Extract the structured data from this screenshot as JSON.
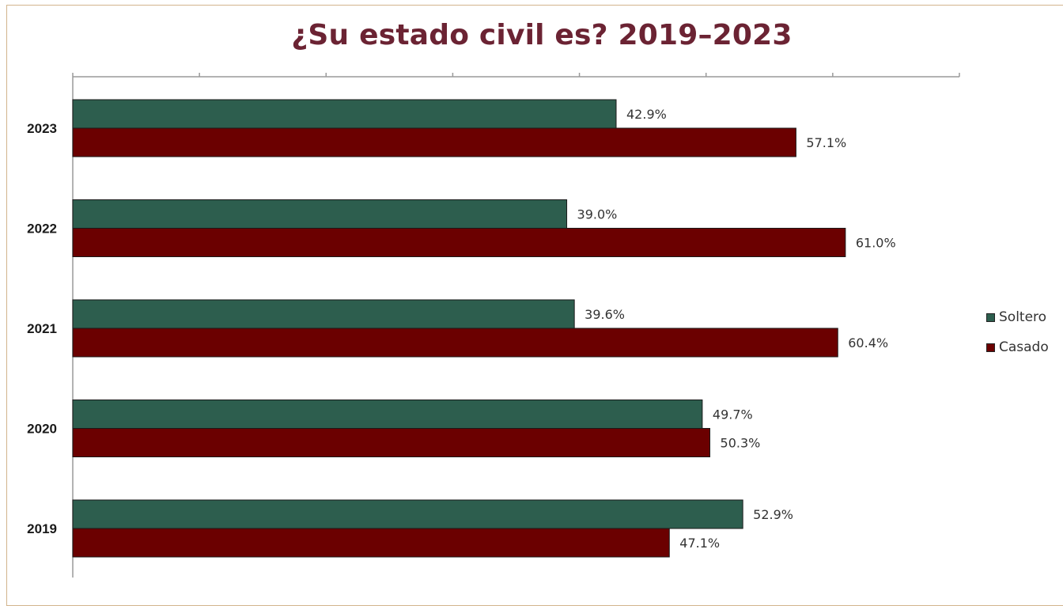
{
  "chart_data": {
    "type": "bar",
    "orientation": "horizontal",
    "title": "¿Su estado civil es? 2019–2023",
    "categories": [
      "2023",
      "2022",
      "2021",
      "2020",
      "2019"
    ],
    "series": [
      {
        "name": "Soltero",
        "color": "#2d5e4e",
        "values": [
          42.9,
          39.0,
          39.6,
          49.7,
          52.9
        ],
        "labels": [
          "42.9%",
          "39.0%",
          "39.6%",
          "49.7%",
          "52.9%"
        ]
      },
      {
        "name": "Casado",
        "color": "#6b0000",
        "values": [
          57.1,
          61.0,
          60.4,
          50.3,
          47.1
        ],
        "labels": [
          "57.1%",
          "61.0%",
          "60.4%",
          "50.3%",
          "47.1%"
        ]
      }
    ],
    "xlim": [
      0,
      70
    ],
    "axis_position": "top",
    "tick_labels_visible": false,
    "gridlines": false,
    "legend_position": "right"
  }
}
